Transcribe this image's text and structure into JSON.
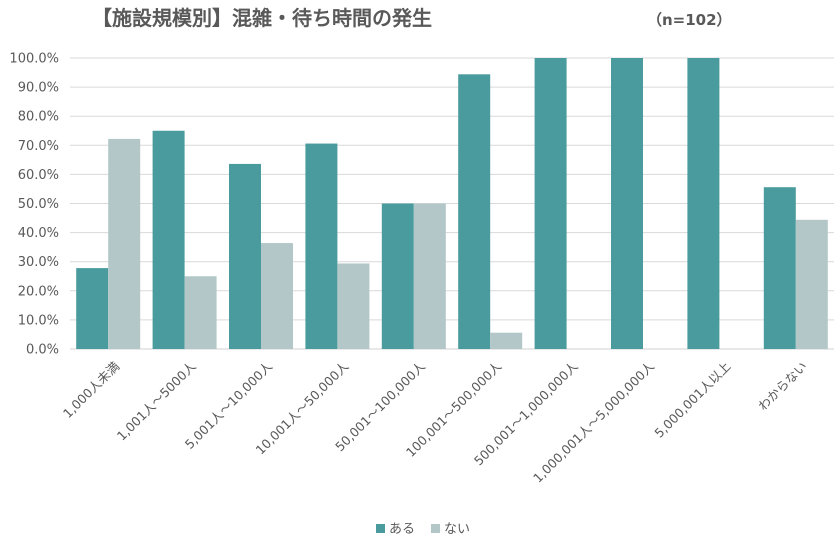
{
  "chart_data": {
    "type": "bar",
    "title": "【施設規模別】混雑・待ち時間の発生",
    "subtitle": "（n=102）",
    "xlabel": "",
    "ylabel": "",
    "ylim": [
      0,
      100
    ],
    "y_tick_labels": [
      "0.0%",
      "10.0%",
      "20.0%",
      "30.0%",
      "40.0%",
      "50.0%",
      "60.0%",
      "70.0%",
      "80.0%",
      "90.0%",
      "100.0%"
    ],
    "grid": true,
    "legend_position": "bottom",
    "categories": [
      "1,000人未満",
      "1,001人～5000人",
      "5,001人～10,000人",
      "10,001人～50,000人",
      "50,001～100,000人",
      "100,001～500,000人",
      "500,001～1,000,000人",
      "1,000,001人～5,000,000人",
      "5,000,001人以上",
      "わからない"
    ],
    "series": [
      {
        "name": "ある",
        "color": "#4a9b9e",
        "values": [
          27.8,
          75.0,
          63.6,
          70.6,
          50.0,
          94.4,
          100.0,
          100.0,
          100.0,
          55.6
        ]
      },
      {
        "name": "ない",
        "color": "#b3c7c8",
        "values": [
          72.2,
          25.0,
          36.4,
          29.4,
          50.0,
          5.6,
          0,
          0,
          0,
          44.4
        ]
      }
    ]
  }
}
